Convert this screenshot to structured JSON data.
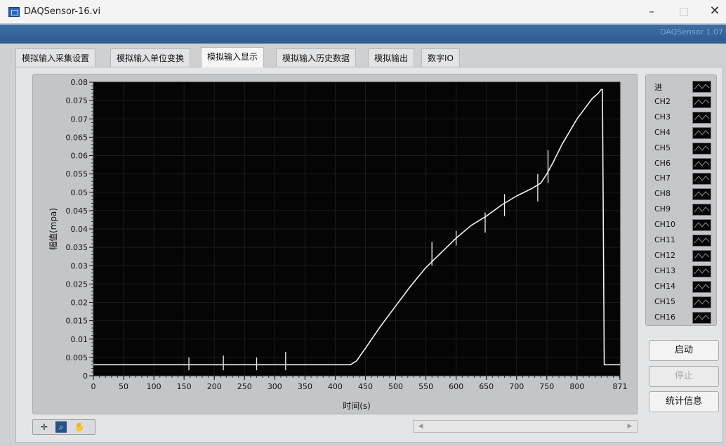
{
  "window": {
    "title": "DAQSensor-16.vi",
    "banner_text": "DAQSensor 1.07",
    "controls": {
      "minimize": "–",
      "maximize": "□",
      "close": "✕"
    }
  },
  "tabs": [
    {
      "label": "模拟输入采集设置",
      "active": false
    },
    {
      "label": "模拟输入单位变换",
      "active": false
    },
    {
      "label": "模拟输入显示",
      "active": true
    },
    {
      "label": "模拟输入历史数据",
      "active": false
    },
    {
      "label": "模拟输出",
      "active": false
    },
    {
      "label": "数字IO",
      "active": false
    }
  ],
  "legend": {
    "items": [
      "进",
      "CH2",
      "CH3",
      "CH4",
      "CH5",
      "CH6",
      "CH7",
      "CH8",
      "CH9",
      "CH10",
      "CH11",
      "CH12",
      "CH13",
      "CH14",
      "CH15",
      "CH16"
    ]
  },
  "buttons": {
    "start": "启动",
    "stop": "停止",
    "stats": "统计信息"
  },
  "toolbar_icons": [
    "crosshair-icon",
    "zoom-icon",
    "pan-hand-icon"
  ],
  "colors": {
    "plot_bg": "#050505",
    "trace": "#f2f2f2",
    "grid": "#1c1c1c",
    "banner": "#2d5b8f"
  },
  "chart_data": {
    "type": "line",
    "xlabel": "时间(s)",
    "ylabel": "幅值(mpa)",
    "xlim": [
      0,
      871
    ],
    "ylim": [
      0,
      0.08
    ],
    "x_ticks": [
      0,
      50,
      100,
      150,
      200,
      250,
      300,
      350,
      400,
      450,
      500,
      550,
      600,
      650,
      700,
      750,
      800,
      871
    ],
    "y_ticks": [
      0,
      0.005,
      0.01,
      0.015,
      0.02,
      0.025,
      0.03,
      0.035,
      0.04,
      0.045,
      0.05,
      0.055,
      0.06,
      0.065,
      0.07,
      0.075,
      0.08
    ],
    "grid": true,
    "series": [
      {
        "x": [
          0,
          50,
          100,
          150,
          200,
          250,
          300,
          350,
          400,
          425,
          435,
          450,
          475,
          500,
          525,
          550,
          575,
          600,
          625,
          650,
          675,
          700,
          725,
          740,
          750,
          760,
          775,
          800,
          825,
          835,
          840,
          842,
          845,
          871
        ],
        "y": [
          0.003,
          0.003,
          0.003,
          0.003,
          0.003,
          0.003,
          0.003,
          0.003,
          0.003,
          0.003,
          0.004,
          0.0075,
          0.0135,
          0.019,
          0.0245,
          0.0295,
          0.0335,
          0.0375,
          0.041,
          0.0435,
          0.0465,
          0.049,
          0.051,
          0.0525,
          0.055,
          0.058,
          0.063,
          0.07,
          0.0755,
          0.077,
          0.078,
          0.078,
          0.003,
          0.003
        ]
      }
    ],
    "spikes": [
      {
        "x": 158,
        "low": 0.0015,
        "high": 0.005
      },
      {
        "x": 215,
        "low": 0.0015,
        "high": 0.0055
      },
      {
        "x": 270,
        "low": 0.0015,
        "high": 0.005
      },
      {
        "x": 318,
        "low": 0.0015,
        "high": 0.0065
      },
      {
        "x": 560,
        "low": 0.03,
        "high": 0.0365
      },
      {
        "x": 600,
        "low": 0.0355,
        "high": 0.0395
      },
      {
        "x": 648,
        "low": 0.039,
        "high": 0.0445
      },
      {
        "x": 680,
        "low": 0.0435,
        "high": 0.0495
      },
      {
        "x": 735,
        "low": 0.0475,
        "high": 0.055
      },
      {
        "x": 752,
        "low": 0.0525,
        "high": 0.0615
      }
    ]
  }
}
